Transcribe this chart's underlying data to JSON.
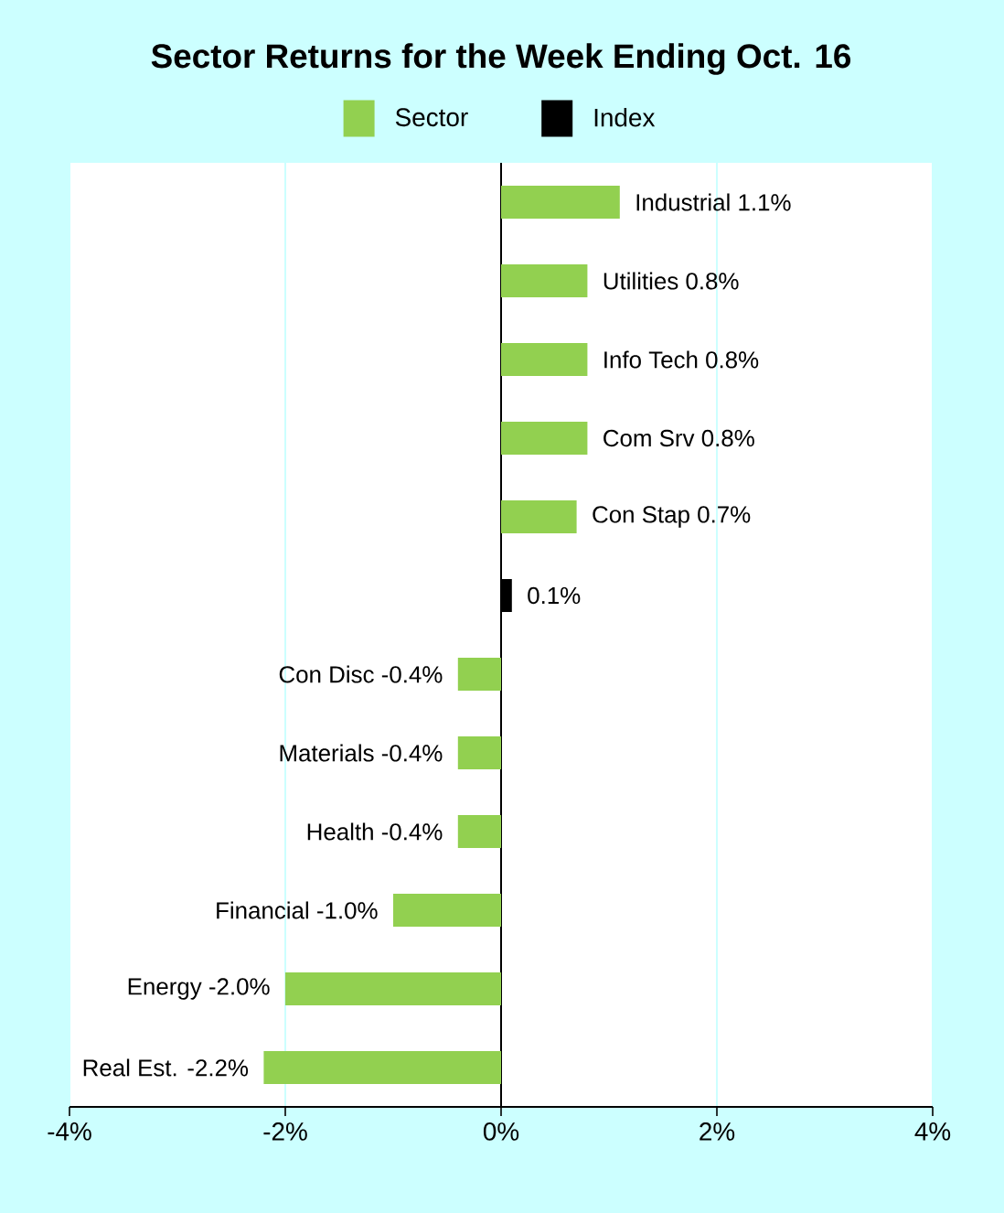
{
  "chart_data": {
    "type": "bar",
    "orientation": "horizontal",
    "title": "Sector Returns for the Week Ending Oct. 16",
    "categories": [
      null,
      null,
      null,
      null,
      null,
      null,
      null,
      null,
      null,
      null,
      null,
      null
    ],
    "series": [
      {
        "name": "Sector",
        "color": "#92d050",
        "values": [
          1.1,
          0.8,
          0.8,
          0.8,
          0.7,
          null,
          -0.4,
          -0.4,
          -0.4,
          -1.0,
          -2.0,
          -2.2
        ],
        "value_labels": [
          "Industrial 1.1%",
          "Utilities 0.8%",
          "Info Tech 0.8%",
          "Com Srv 0.8%",
          "Con Stap 0.7%",
          null,
          "Con Disc -0.4%",
          "Materials -0.4%",
          "Health -0.4%",
          "Financial -1.0%",
          "Energy -2.0%",
          "Real Est. -2.2%"
        ]
      },
      {
        "name": "Index",
        "color": "#000000",
        "values": [
          null,
          null,
          null,
          null,
          null,
          0.1,
          null,
          null,
          null,
          null,
          null,
          null
        ],
        "value_labels": [
          null,
          null,
          null,
          null,
          null,
          "0.1%",
          null,
          null,
          null,
          null,
          null,
          null
        ]
      }
    ],
    "xlim": [
      -4,
      4
    ],
    "xticks": [
      {
        "value": -4,
        "label": "-4%"
      },
      {
        "value": -2,
        "label": "-2%"
      },
      {
        "value": 0,
        "label": "0%"
      },
      {
        "value": 2,
        "label": "2%"
      },
      {
        "value": 4,
        "label": "4%"
      }
    ],
    "grid": "x",
    "legend": "top"
  }
}
